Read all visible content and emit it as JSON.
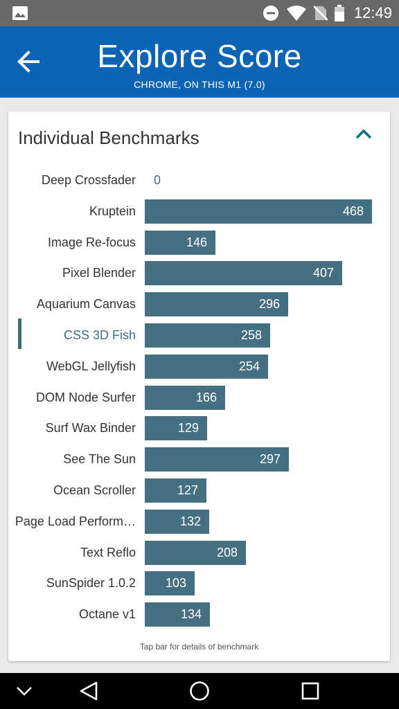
{
  "status_bar": {
    "time": "12:49",
    "icons": [
      "gallery-icon",
      "do-not-disturb-icon",
      "wifi-icon",
      "no-sim-icon",
      "battery-icon"
    ]
  },
  "app_bar": {
    "title": "Explore Score",
    "subtitle": "CHROME, ON THIS M1 (7.0)"
  },
  "card": {
    "title": "Individual Benchmarks",
    "hint": "Tap bar for details of benchmark",
    "scale_max": 468,
    "selected_index": 5,
    "benchmarks": [
      {
        "name": "Deep Crossfader",
        "score": 0
      },
      {
        "name": "Kruptein",
        "score": 468
      },
      {
        "name": "Image Re-focus",
        "score": 146
      },
      {
        "name": "Pixel Blender",
        "score": 407
      },
      {
        "name": "Aquarium Canvas",
        "score": 296
      },
      {
        "name": "CSS 3D Fish",
        "score": 258
      },
      {
        "name": "WebGL Jellyfish",
        "score": 254
      },
      {
        "name": "DOM Node Surfer",
        "score": 166
      },
      {
        "name": "Surf Wax Binder",
        "score": 129
      },
      {
        "name": "See The Sun",
        "score": 297
      },
      {
        "name": "Ocean Scroller",
        "score": 127
      },
      {
        "name": "Page Load Perform…",
        "score": 132
      },
      {
        "name": "Text Reflo",
        "score": 208
      },
      {
        "name": "SunSpider 1.0.2",
        "score": 103
      },
      {
        "name": "Octane v1",
        "score": 134
      }
    ]
  },
  "colors": {
    "app_bar": "#0d64b5",
    "bar": "#457082",
    "accent": "#0d6e8a"
  }
}
